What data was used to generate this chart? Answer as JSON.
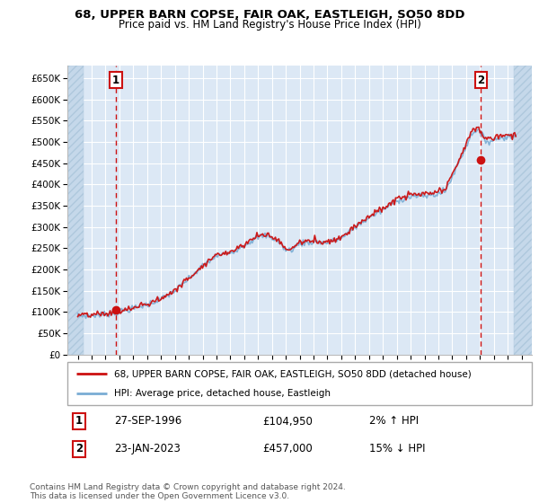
{
  "title1": "68, UPPER BARN COPSE, FAIR OAK, EASTLEIGH, SO50 8DD",
  "title2": "Price paid vs. HM Land Registry's House Price Index (HPI)",
  "ylim": [
    0,
    680000
  ],
  "yticks": [
    0,
    50000,
    100000,
    150000,
    200000,
    250000,
    300000,
    350000,
    400000,
    450000,
    500000,
    550000,
    600000,
    650000
  ],
  "ytick_labels": [
    "£0",
    "£50K",
    "£100K",
    "£150K",
    "£200K",
    "£250K",
    "£300K",
    "£350K",
    "£400K",
    "£450K",
    "£500K",
    "£550K",
    "£600K",
    "£650K"
  ],
  "xlim_start": 1993.25,
  "xlim_end": 2026.75,
  "xtick_years": [
    1994,
    1995,
    1996,
    1997,
    1998,
    1999,
    2000,
    2001,
    2002,
    2003,
    2004,
    2005,
    2006,
    2007,
    2008,
    2009,
    2010,
    2011,
    2012,
    2013,
    2014,
    2015,
    2016,
    2017,
    2018,
    2019,
    2020,
    2021,
    2022,
    2023,
    2024,
    2025,
    2026
  ],
  "hpi_color": "#7aadd4",
  "price_color": "#cc1111",
  "dot_color": "#cc1111",
  "sale1_date": 1996.74,
  "sale1_price": 104950,
  "sale1_label": "1",
  "sale2_date": 2023.06,
  "sale2_price": 457000,
  "sale2_label": "2",
  "bg_plot": "#dce8f5",
  "grid_color": "#ffffff",
  "legend_entry1": "68, UPPER BARN COPSE, FAIR OAK, EASTLEIGH, SO50 8DD (detached house)",
  "legend_entry2": "HPI: Average price, detached house, Eastleigh",
  "table_row1": [
    "1",
    "27-SEP-1996",
    "£104,950",
    "2% ↑ HPI"
  ],
  "table_row2": [
    "2",
    "23-JAN-2023",
    "£457,000",
    "15% ↓ HPI"
  ],
  "footnote": "Contains HM Land Registry data © Crown copyright and database right 2024.\nThis data is licensed under the Open Government Licence v3.0.",
  "vline_color": "#cc1111",
  "hatch_left_end": 1994.42,
  "hatch_right_start": 2025.42
}
